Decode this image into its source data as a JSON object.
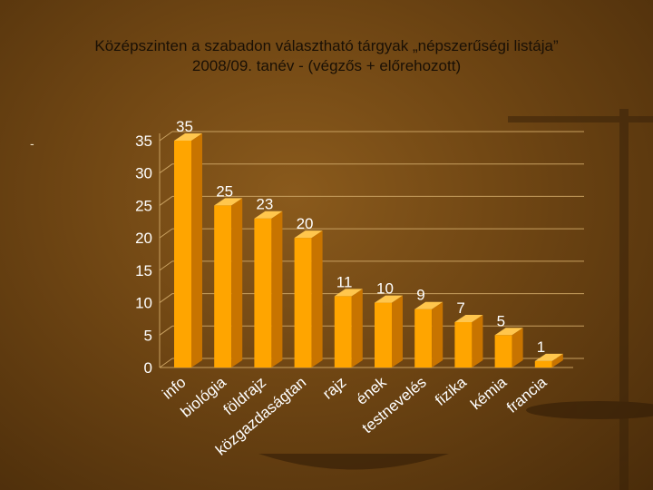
{
  "slide": {
    "title_line1": "Középszinten a szabadon választható tárgyak „népszerűségi listája”",
    "title_line2": "2008/09. tanév - (végzős + előrehozott)",
    "stray_mark": "-"
  },
  "colors": {
    "bar_front": "#ffa500",
    "bar_side": "#c87400",
    "bar_top": "#ffc64d",
    "gridline": "#c8a060",
    "text": "#ffffff"
  },
  "chart_data": {
    "type": "bar",
    "title": "",
    "xlabel": "",
    "ylabel": "",
    "ylim": [
      0,
      35
    ],
    "yticks": [
      "0",
      "5",
      "10",
      "15",
      "20",
      "25",
      "30",
      "35"
    ],
    "grid": true,
    "style": "3d-columns",
    "categories": [
      "info",
      "biológia",
      "földrajz",
      "közgazdaságtan",
      "rajz",
      "ének",
      "testnevelés",
      "fizika",
      "kémia",
      "francia"
    ],
    "values": [
      35,
      25,
      23,
      20,
      11,
      10,
      9,
      7,
      5,
      1
    ],
    "data_labels": [
      "35",
      "25",
      "23",
      "20",
      "11",
      "10",
      "9",
      "7",
      "5",
      "1"
    ]
  }
}
